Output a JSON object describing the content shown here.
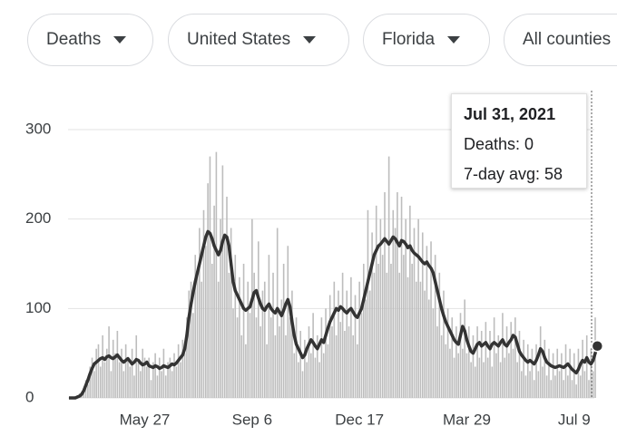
{
  "filters": [
    "Deaths",
    "United States",
    "Florida",
    "All counties"
  ],
  "tooltip": {
    "title": "Jul 31, 2021",
    "lines": [
      "Deaths: 0",
      "7-day avg: 58"
    ]
  },
  "chart_data": {
    "type": "bar",
    "categories": [
      null,
      null,
      null,
      null,
      null,
      null,
      null,
      null,
      null,
      null,
      null,
      null,
      null,
      null,
      null,
      null,
      null,
      null,
      null,
      null,
      null,
      null,
      null,
      null,
      null,
      null,
      null,
      null,
      null,
      null,
      null,
      null,
      null,
      null,
      null,
      null,
      "May 27",
      null,
      null,
      null,
      null,
      null,
      null,
      null,
      null,
      null,
      null,
      null,
      null,
      null,
      null,
      null,
      null,
      null,
      null,
      null,
      null,
      null,
      null,
      null,
      null,
      null,
      null,
      null,
      null,
      null,
      null,
      null,
      null,
      null,
      null,
      null,
      null,
      null,
      null,
      null,
      null,
      null,
      null,
      null,
      null,
      null,
      null,
      null,
      null,
      null,
      null,
      "Sep 6",
      null,
      null,
      null,
      null,
      null,
      null,
      null,
      null,
      null,
      null,
      null,
      null,
      null,
      null,
      null,
      null,
      null,
      null,
      null,
      null,
      null,
      null,
      null,
      null,
      null,
      null,
      null,
      null,
      null,
      null,
      null,
      null,
      null,
      null,
      null,
      null,
      null,
      null,
      null,
      null,
      null,
      null,
      null,
      null,
      null,
      null,
      null,
      null,
      null,
      null,
      "Dec 17",
      null,
      null,
      null,
      null,
      null,
      null,
      null,
      null,
      null,
      null,
      null,
      null,
      null,
      null,
      null,
      null,
      null,
      null,
      null,
      null,
      null,
      null,
      null,
      null,
      null,
      null,
      null,
      null,
      null,
      null,
      null,
      null,
      null,
      null,
      null,
      null,
      null,
      null,
      null,
      null,
      null,
      null,
      null,
      null,
      null,
      null,
      null,
      null,
      null,
      null,
      "Mar 29",
      null,
      null,
      null,
      null,
      null,
      null,
      null,
      null,
      null,
      null,
      null,
      null,
      null,
      null,
      null,
      null,
      null,
      null,
      null,
      null,
      null,
      null,
      null,
      null,
      null,
      null,
      null,
      null,
      null,
      null,
      null,
      null,
      null,
      null,
      null,
      null,
      null,
      null,
      null,
      null,
      null,
      null,
      null,
      null,
      null,
      null,
      null,
      null,
      null,
      null,
      "Jul 9",
      null,
      null,
      null,
      null,
      null,
      null,
      null,
      null,
      null,
      null,
      null
    ],
    "series": [
      {
        "type": "bar",
        "color": "#bdbdbd",
        "values": [
          0,
          0,
          0,
          2,
          3,
          5,
          6,
          10,
          20,
          15,
          35,
          45,
          30,
          55,
          60,
          35,
          70,
          40,
          55,
          80,
          30,
          65,
          50,
          75,
          40,
          55,
          30,
          60,
          45,
          35,
          55,
          25,
          70,
          40,
          30,
          55,
          45,
          35,
          45,
          20,
          40,
          50,
          25,
          45,
          30,
          55,
          25,
          40,
          45,
          30,
          50,
          35,
          60,
          40,
          65,
          50,
          90,
          120,
          130,
          95,
          160,
          140,
          190,
          130,
          210,
          170,
          240,
          270,
          150,
          215,
          275,
          130,
          200,
          260,
          180,
          225,
          140,
          190,
          100,
          160,
          90,
          135,
          70,
          150,
          60,
          130,
          95,
          200,
          140,
          90,
          175,
          80,
          120,
          130,
          60,
          160,
          90,
          140,
          70,
          190,
          80,
          110,
          150,
          70,
          170,
          90,
          120,
          50,
          90,
          40,
          75,
          30,
          65,
          40,
          80,
          50,
          95,
          45,
          70,
          40,
          90,
          50,
          100,
          60,
          115,
          80,
          130,
          70,
          120,
          85,
          140,
          75,
          120,
          80,
          135,
          70,
          115,
          60,
          130,
          95,
          150,
          110,
          210,
          120,
          185,
          140,
          215,
          150,
          200,
          160,
          230,
          140,
          270,
          150,
          210,
          190,
          230,
          140,
          225,
          160,
          200,
          135,
          215,
          150,
          190,
          130,
          200,
          130,
          185,
          120,
          170,
          110,
          175,
          100,
          160,
          80,
          140,
          70,
          120,
          60,
          100,
          55,
          90,
          45,
          80,
          50,
          95,
          55,
          110,
          50,
          80,
          40,
          70,
          35,
          80,
          45,
          75,
          40,
          85,
          45,
          75,
          35,
          90,
          50,
          70,
          40,
          95,
          45,
          80,
          50,
          85,
          55,
          90,
          40,
          75,
          30,
          65,
          25,
          60,
          30,
          55,
          20,
          60,
          30,
          80,
          35,
          65,
          25,
          55,
          20,
          50,
          25,
          55,
          30,
          50,
          20,
          60,
          25,
          55,
          20,
          50,
          15,
          55,
          25,
          65,
          30,
          70,
          20,
          55,
          30,
          90,
          0
        ]
      },
      {
        "type": "line",
        "color": "#333333",
        "values": [
          0,
          0,
          0,
          0,
          1,
          2,
          4,
          8,
          14,
          20,
          27,
          33,
          38,
          40,
          42,
          44,
          45,
          43,
          46,
          47,
          45,
          44,
          46,
          48,
          45,
          42,
          40,
          42,
          44,
          41,
          38,
          40,
          43,
          42,
          39,
          37,
          38,
          40,
          36,
          35,
          34,
          36,
          35,
          33,
          34,
          36,
          35,
          34,
          36,
          38,
          37,
          39,
          42,
          45,
          48,
          55,
          70,
          90,
          105,
          118,
          130,
          140,
          150,
          160,
          170,
          180,
          186,
          184,
          178,
          170,
          165,
          160,
          165,
          175,
          182,
          180,
          170,
          150,
          130,
          120,
          115,
          110,
          105,
          100,
          98,
          100,
          102,
          110,
          118,
          120,
          112,
          105,
          100,
          98,
          102,
          105,
          100,
          97,
          95,
          100,
          96,
          92,
          98,
          105,
          110,
          102,
          85,
          70,
          60,
          55,
          50,
          45,
          48,
          55,
          60,
          65,
          62,
          58,
          55,
          60,
          65,
          62,
          70,
          78,
          85,
          90,
          95,
          100,
          98,
          102,
          100,
          97,
          95,
          98,
          100,
          96,
          92,
          90,
          95,
          100,
          110,
          120,
          130,
          140,
          150,
          160,
          165,
          170,
          172,
          175,
          178,
          175,
          172,
          176,
          180,
          178,
          174,
          170,
          176,
          175,
          172,
          168,
          170,
          165,
          162,
          160,
          158,
          155,
          152,
          150,
          152,
          148,
          145,
          140,
          130,
          120,
          110,
          100,
          92,
          85,
          80,
          75,
          70,
          65,
          62,
          60,
          70,
          80,
          75,
          65,
          58,
          52,
          50,
          55,
          60,
          62,
          58,
          60,
          62,
          58,
          55,
          60,
          62,
          60,
          58,
          62,
          65,
          60,
          58,
          62,
          65,
          70,
          68,
          60,
          52,
          48,
          45,
          42,
          40,
          42,
          40,
          38,
          42,
          48,
          55,
          52,
          45,
          40,
          38,
          36,
          35,
          34,
          35,
          36,
          35,
          34,
          36,
          38,
          35,
          32,
          30,
          28,
          32,
          38,
          42,
          40,
          45,
          40,
          38,
          42,
          50,
          58
        ]
      }
    ],
    "ylim": [
      0,
      300
    ],
    "yticks": [
      0,
      100,
      200,
      300
    ],
    "grid": true
  }
}
